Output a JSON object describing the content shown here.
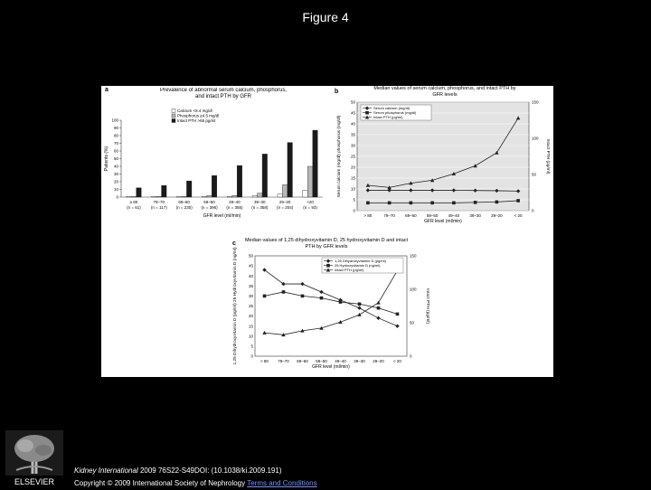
{
  "slide": {
    "title": "Figure 4",
    "journal": "Kidney International",
    "citation_rest": " 2009 76S22-S49DOI: (10.1038/ki.2009.191)",
    "copyright": "Copyright © 2009 International Society of Nephrology ",
    "terms_link": "Terms and Conditions",
    "publisher_logo": "ELSEVIER",
    "logo_icon": "elsevier-tree-icon"
  },
  "chart_data": [
    {
      "panel_label": "a",
      "type": "bar",
      "title": "Prevalence of abnormal serum calcium, phosphorus, and intact PTH by GFR",
      "xlabel": "GFR level (ml/min)",
      "ylabel": "Patients (%)",
      "ylim": [
        0,
        100
      ],
      "yticks": [
        0,
        10,
        20,
        30,
        40,
        50,
        60,
        70,
        80,
        90,
        100
      ],
      "categories": [
        "≥ 80",
        "79–70",
        "69–60",
        "59–50",
        "49–40",
        "39–30",
        "29–20",
        "<20"
      ],
      "category_n": [
        "(n = 61)",
        "(n = 117)",
        "(n = 230)",
        "(n = 396)",
        "(n = 355)",
        "(n = 358)",
        "(n = 204)",
        "(n = 93)"
      ],
      "legend_position": "top-left",
      "series": [
        {
          "name": "Calcium <8.4 mg/dl",
          "color": "#ffffff",
          "values": [
            1,
            1,
            1,
            1,
            1,
            2,
            4,
            9
          ]
        },
        {
          "name": "Phosphorus ≥4.5 mg/dl",
          "color": "#b8b8b8",
          "values": [
            1,
            1,
            1,
            2,
            2,
            5,
            16,
            40
          ]
        },
        {
          "name": "Intact PTH >65 pg/ml",
          "color": "#1a1a1a",
          "values": [
            12,
            15,
            21,
            28,
            41,
            56,
            71,
            87
          ]
        }
      ]
    },
    {
      "panel_label": "b",
      "type": "line",
      "title": "Median values of serum calcium, phosphorus, and intact PTH by GFR levels",
      "xlabel": "GFR level (ml/min)",
      "ylabel_left": "Serum calcium (mg/dl) phosphorus (mg/dl)",
      "ylabel_right": "Intact PTH (pg/ml)",
      "ylim_left": [
        0,
        50
      ],
      "ylim_right": [
        0,
        150
      ],
      "yticks_left": [
        0,
        5,
        10,
        15,
        20,
        25,
        30,
        35,
        40,
        45,
        50
      ],
      "yticks_right": [
        0,
        50,
        100,
        150
      ],
      "categories": [
        "> 80",
        "79–70",
        "69–60",
        "59–50",
        "49–40",
        "39–30",
        "29–20",
        "< 20"
      ],
      "grid": true,
      "legend_position": "top-left",
      "series": [
        {
          "name": "Serum calcium (mg/dl)",
          "axis": "left",
          "marker": "diamond",
          "values": [
            9.4,
            9.4,
            9.4,
            9.4,
            9.4,
            9.3,
            9.2,
            9.0
          ]
        },
        {
          "name": "Serum phosphorus (mg/dl)",
          "axis": "left",
          "marker": "square",
          "values": [
            3.6,
            3.6,
            3.6,
            3.6,
            3.6,
            3.8,
            4.0,
            4.6
          ]
        },
        {
          "name": "Intact PTH (pg/ml)",
          "axis": "right",
          "marker": "triangle",
          "values": [
            35,
            32,
            38,
            42,
            51,
            62,
            80,
            128
          ]
        }
      ]
    },
    {
      "panel_label": "c",
      "type": "line",
      "title": "Median values of 1,25 dihydroxyvitamin D, 25 hydroxyvitamin D and intact PTH by GFR levels",
      "xlabel": "GFR level (ml/min)",
      "ylabel_left": "1,25 Dihydroxyvitamin D (pg/ml) 25 Hydroxyvitamin D (ng/ml)",
      "ylabel_right": "Intact PTH (pg/ml)",
      "ylim_left": [
        0,
        50
      ],
      "ylim_right": [
        0,
        150
      ],
      "yticks_left": [
        0,
        5,
        10,
        15,
        20,
        25,
        30,
        35,
        40,
        45,
        50
      ],
      "yticks_right": [
        0,
        50,
        100,
        150
      ],
      "categories": [
        "> 80",
        "79–70",
        "69–60",
        "59–50",
        "49–40",
        "39–30",
        "29–20",
        "< 20"
      ],
      "legend_position": "top-right",
      "series": [
        {
          "name": "1,25 Dihydroxyvitamin D (pg/ml)",
          "axis": "left",
          "marker": "diamond",
          "values": [
            43,
            36,
            36,
            32,
            28,
            24,
            19,
            15
          ]
        },
        {
          "name": "25 Hydroxyvitamin D (ng/ml)",
          "axis": "left",
          "marker": "square",
          "values": [
            30,
            32,
            30,
            29,
            27,
            26,
            24,
            21
          ]
        },
        {
          "name": "Intact PTH (pg/ml)",
          "axis": "right",
          "marker": "triangle",
          "values": [
            35,
            32,
            38,
            42,
            51,
            62,
            80,
            128
          ]
        }
      ]
    }
  ]
}
